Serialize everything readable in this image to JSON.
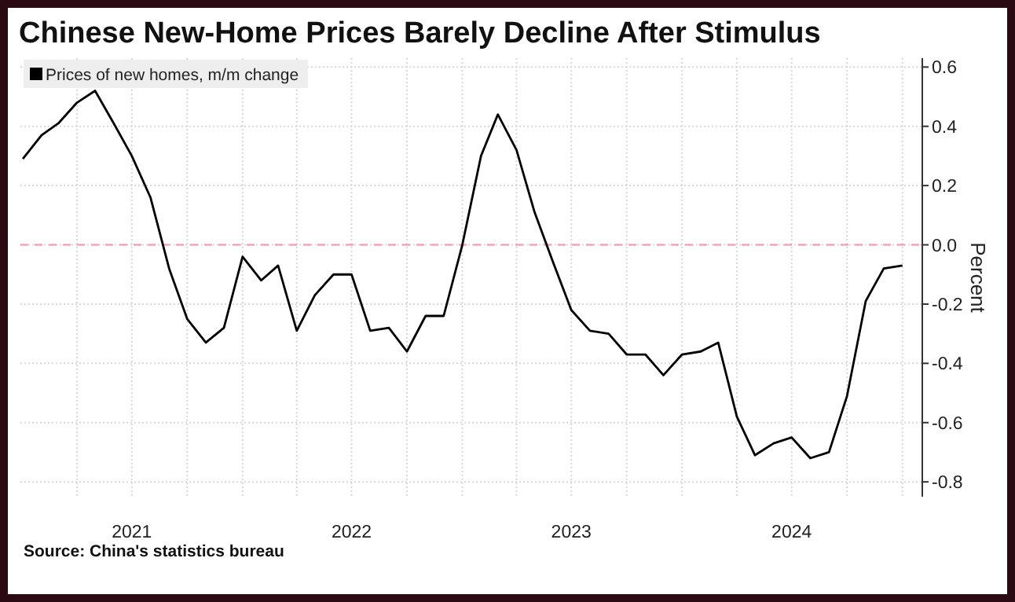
{
  "chart_data": {
    "type": "line",
    "title": "Chinese New-Home Prices Barely Decline After Stimulus",
    "ylabel": "Percent",
    "annotations": [
      "Source: China's statistics bureau"
    ],
    "x": [
      "2021-01",
      "2021-02",
      "2021-03",
      "2021-04",
      "2021-05",
      "2021-06",
      "2021-07",
      "2021-08",
      "2021-09",
      "2021-10",
      "2021-11",
      "2021-12",
      "2022-01",
      "2022-02",
      "2022-03",
      "2022-04",
      "2022-05",
      "2022-06",
      "2022-07",
      "2022-08",
      "2022-09",
      "2022-10",
      "2022-11",
      "2022-12",
      "2023-01",
      "2023-02",
      "2023-03",
      "2023-04",
      "2023-05",
      "2023-06",
      "2023-07",
      "2023-08",
      "2023-09",
      "2023-10",
      "2023-11",
      "2023-12",
      "2024-01",
      "2024-02",
      "2024-03",
      "2024-04",
      "2024-05",
      "2024-06",
      "2024-07",
      "2024-08",
      "2024-09",
      "2024-10",
      "2024-11",
      "2024-12",
      "2025-01"
    ],
    "series": [
      {
        "name": "Prices of new homes, m/m change",
        "color": "#000000",
        "values": [
          0.29,
          0.37,
          0.41,
          0.48,
          0.52,
          0.41,
          0.3,
          0.16,
          -0.08,
          -0.25,
          -0.33,
          -0.28,
          -0.04,
          -0.12,
          -0.07,
          -0.29,
          -0.17,
          -0.1,
          -0.1,
          -0.29,
          -0.28,
          -0.36,
          -0.24,
          -0.24,
          0.0,
          0.3,
          0.44,
          0.32,
          0.11,
          -0.06,
          -0.22,
          -0.29,
          -0.3,
          -0.37,
          -0.37,
          -0.44,
          -0.37,
          -0.36,
          -0.33,
          -0.58,
          -0.71,
          -0.67,
          -0.65,
          -0.72,
          -0.7,
          -0.51,
          -0.19,
          -0.08,
          -0.07
        ]
      }
    ],
    "xlim": [
      "2020-12-28",
      "2025-02-03"
    ],
    "xticks": [
      {
        "value": "2021-04-01",
        "label": null
      },
      {
        "value": "2021-07-01",
        "label": "2021"
      },
      {
        "value": "2021-10-01",
        "label": null
      },
      {
        "value": "2022-01-01",
        "label": null
      },
      {
        "value": "2022-04-01",
        "label": null
      },
      {
        "value": "2022-07-01",
        "label": "2022"
      },
      {
        "value": "2022-10-01",
        "label": null
      },
      {
        "value": "2023-01-01",
        "label": null
      },
      {
        "value": "2023-04-01",
        "label": null
      },
      {
        "value": "2023-07-01",
        "label": "2023"
      },
      {
        "value": "2023-10-01",
        "label": null
      },
      {
        "value": "2024-01-01",
        "label": null
      },
      {
        "value": "2024-04-01",
        "label": null
      },
      {
        "value": "2024-07-01",
        "label": "2024"
      },
      {
        "value": "2024-10-01",
        "label": null
      },
      {
        "value": "2025-01-01",
        "label": null
      }
    ],
    "ylim": [
      -0.85,
      0.63
    ],
    "yticks": [
      0.6,
      0.4,
      0.2,
      {
        "value": 0,
        "label": "0.0"
      },
      -0.2,
      -0.4,
      -0.6,
      -0.8
    ],
    "ref_lines": [
      {
        "axis": "y",
        "value": 0,
        "color": "#ff8fb0",
        "line_style": "dashed"
      }
    ],
    "grid": true,
    "legend": "top left",
    "line_style": "solid",
    "marker": "none"
  }
}
